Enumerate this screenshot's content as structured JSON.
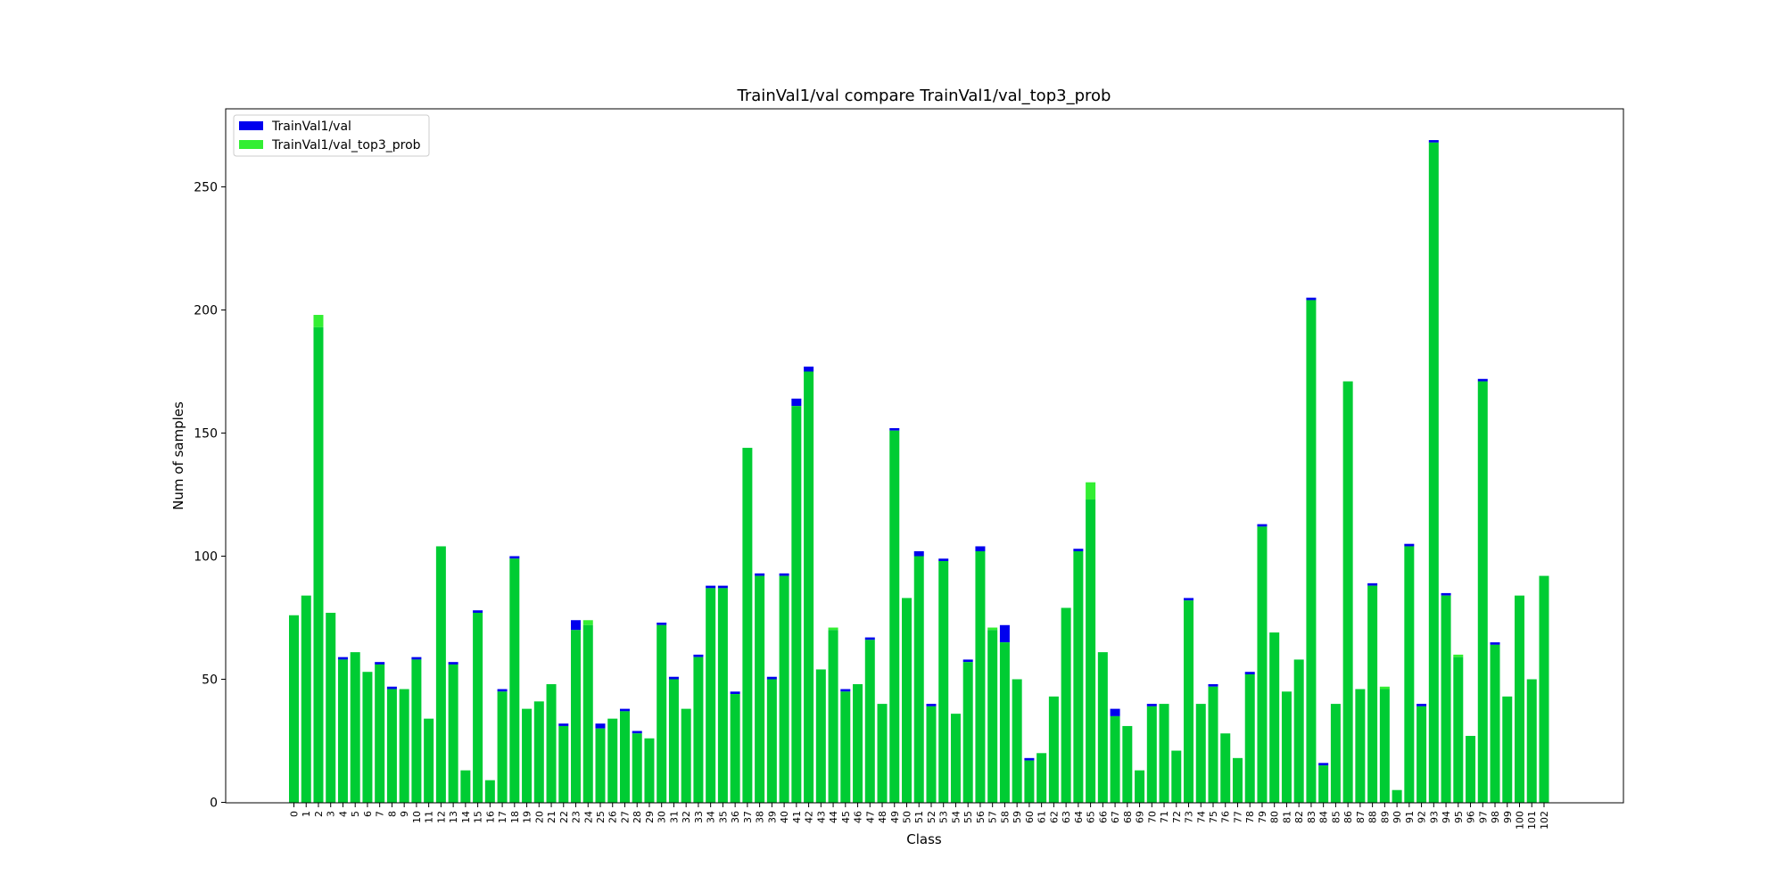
{
  "chart_data": {
    "type": "bar",
    "title": "TrainVal1/val compare TrainVal1/val_top3_prob",
    "xlabel": "Class",
    "ylabel": "Num of samples",
    "ylim": [
      0,
      280
    ],
    "yticks": [
      0,
      50,
      100,
      150,
      200,
      250
    ],
    "grid": false,
    "legend_position": "top-left",
    "categories": [
      "0",
      "1",
      "2",
      "3",
      "4",
      "5",
      "6",
      "7",
      "8",
      "9",
      "10",
      "11",
      "12",
      "13",
      "14",
      "15",
      "16",
      "17",
      "18",
      "19",
      "20",
      "21",
      "22",
      "23",
      "24",
      "25",
      "26",
      "27",
      "28",
      "29",
      "30",
      "31",
      "32",
      "33",
      "34",
      "35",
      "36",
      "37",
      "38",
      "39",
      "40",
      "41",
      "42",
      "43",
      "44",
      "45",
      "46",
      "47",
      "48",
      "49",
      "50",
      "51",
      "52",
      "53",
      "54",
      "55",
      "56",
      "57",
      "58",
      "59",
      "60",
      "61",
      "62",
      "63",
      "64",
      "65",
      "66",
      "67",
      "68",
      "69",
      "70",
      "71",
      "72",
      "73",
      "74",
      "75",
      "76",
      "77",
      "78",
      "79",
      "80",
      "81",
      "82",
      "83",
      "84",
      "85",
      "86",
      "87",
      "88",
      "89",
      "90",
      "91",
      "92",
      "93",
      "94",
      "95",
      "96",
      "97",
      "98",
      "99",
      "100",
      "101",
      "102"
    ],
    "series": [
      {
        "name": "TrainVal1/val",
        "color": "#0000ee",
        "values": [
          76,
          84,
          193,
          77,
          59,
          61,
          53,
          57,
          47,
          46,
          59,
          34,
          104,
          57,
          13,
          78,
          9,
          46,
          100,
          38,
          41,
          48,
          32,
          74,
          72,
          32,
          34,
          38,
          29,
          26,
          73,
          51,
          38,
          60,
          88,
          88,
          45,
          144,
          93,
          51,
          93,
          164,
          177,
          54,
          70,
          46,
          48,
          67,
          40,
          152,
          83,
          102,
          40,
          99,
          36,
          58,
          104,
          70,
          72,
          50,
          18,
          20,
          43,
          79,
          103,
          123,
          61,
          38,
          31,
          13,
          40,
          40,
          21,
          83,
          40,
          48,
          28,
          18,
          53,
          113,
          69,
          45,
          58,
          205,
          16,
          40,
          171,
          46,
          89,
          46,
          5,
          105,
          40,
          269,
          85,
          59,
          27,
          172,
          65,
          43,
          84,
          50,
          92
        ]
      },
      {
        "name": "TrainVal1/val_top3_prob",
        "color": "#33ee33",
        "values": [
          76,
          84,
          198,
          77,
          58,
          61,
          53,
          56,
          46,
          46,
          58,
          34,
          104,
          56,
          13,
          77,
          9,
          45,
          99,
          38,
          41,
          48,
          31,
          70,
          74,
          30,
          34,
          37,
          28,
          26,
          72,
          50,
          38,
          59,
          87,
          87,
          44,
          144,
          92,
          50,
          92,
          161,
          175,
          54,
          71,
          45,
          48,
          66,
          40,
          151,
          83,
          100,
          39,
          98,
          36,
          57,
          102,
          71,
          65,
          50,
          17,
          20,
          43,
          79,
          102,
          130,
          61,
          35,
          31,
          13,
          39,
          40,
          21,
          82,
          40,
          47,
          28,
          18,
          52,
          112,
          69,
          45,
          58,
          204,
          15,
          40,
          171,
          46,
          88,
          47,
          5,
          104,
          39,
          268,
          84,
          60,
          27,
          171,
          64,
          43,
          84,
          50,
          92
        ]
      }
    ],
    "overlap_color": "#00cc33"
  }
}
